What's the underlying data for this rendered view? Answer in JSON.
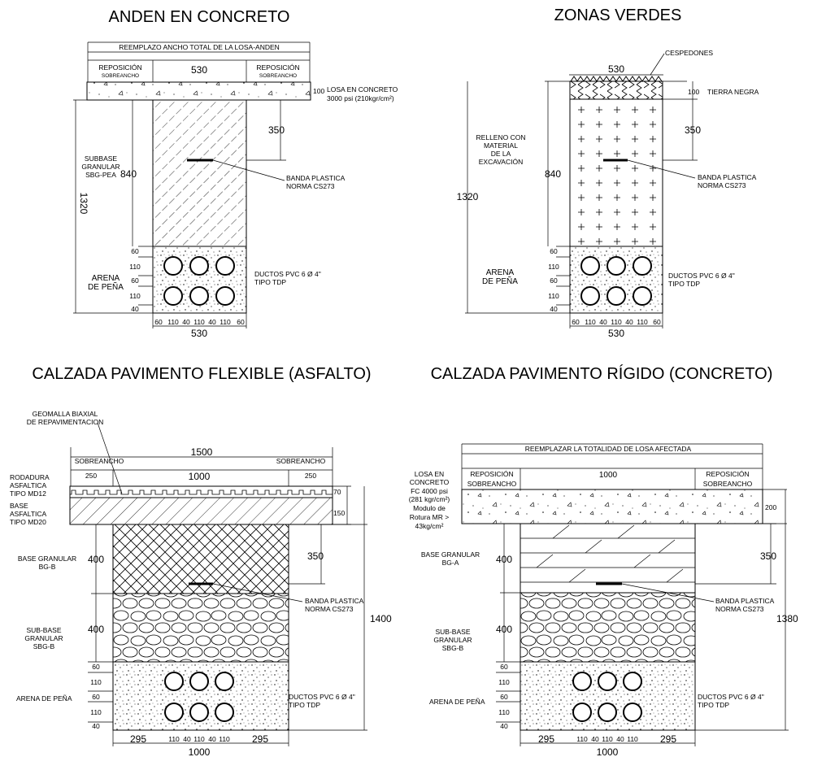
{
  "anden": {
    "title": "ANDEN EN CONCRETO",
    "top_note": "REEMPLAZO ANCHO TOTAL DE LA LOSA-ANDEN",
    "repos_l1": "REPOSICIÓN",
    "repos_l2": "SOBREANCHO",
    "repos_r1": "REPOSICIÓN",
    "repos_r2": "SOBREANCHO",
    "width_top": "530",
    "losa_dim": "100",
    "losa_1": "LOSA EN CONCRETO",
    "losa_2": "3000 psi (210kgr/cm²)",
    "d350": "350",
    "subbase_1": "SUBBASE",
    "subbase_2": "GRANULAR",
    "subbase_3": "SBG-PEA",
    "d840": "840",
    "d1320": "1320",
    "banda_1": "BANDA PLASTICA",
    "banda_2": "NORMA CS273",
    "arena_1": "ARENA",
    "arena_2": "DE PEÑA",
    "ductos_1": "DUCTOS PVC 6 Ø 4\"",
    "ductos_2": "TIPO TDP",
    "v60a": "60",
    "v110a": "110",
    "v60b": "60",
    "v110b": "110",
    "v40": "40",
    "h": [
      "60",
      "110",
      "40",
      "110",
      "40",
      "110",
      "60"
    ],
    "width_bottom": "530"
  },
  "zonas": {
    "title": "ZONAS VERDES",
    "cesped": "CESPEDONES",
    "width_top": "530",
    "tierra_dim": "100",
    "tierra": "TIERRA NEGRA",
    "relleno_1": "RELLENO CON",
    "relleno_2": "MATERIAL",
    "relleno_3": "DE LA",
    "relleno_4": "EXCAVACIÓN",
    "d350": "350",
    "d840": "840",
    "d1320": "1320",
    "banda_1": "BANDA PLASTICA",
    "banda_2": "NORMA CS273",
    "arena_1": "ARENA",
    "arena_2": "DE PEÑA",
    "ductos_1": "DUCTOS PVC 6 Ø 4\"",
    "ductos_2": "TIPO TDP",
    "v60a": "60",
    "v110a": "110",
    "v60b": "60",
    "v110b": "110",
    "v40": "40",
    "h": [
      "60",
      "110",
      "40",
      "110",
      "40",
      "110",
      "60"
    ],
    "width_bottom": "530"
  },
  "flexible": {
    "title": "CALZADA PAVIMENTO FLEXIBLE (ASFALTO)",
    "geomalla_1": "GEOMALLA BIAXIAL",
    "geomalla_2": "DE REPAVIMENTACION",
    "w1500": "1500",
    "sobre_l": "SOBREANCHO",
    "sobre_r": "SOBREANCHO",
    "w250l": "250",
    "w1000": "1000",
    "w250r": "250",
    "rod_1": "RODADURA",
    "rod_2": "ASFALTICA",
    "rod_3": "TIPO MD12",
    "base_1": "BASE",
    "base_2": "ASFALTICA",
    "base_3": "TIPO MD20",
    "d70": "70",
    "d150": "150",
    "bg_1": "BASE GRANULAR",
    "bg_2": "BG-B",
    "d400a": "400",
    "d350": "350",
    "banda_1": "BANDA PLASTICA",
    "banda_2": "NORMA CS273",
    "sbg_1": "SUB-BASE",
    "sbg_2": "GRANULAR",
    "sbg_3": "SBG-B",
    "d400b": "400",
    "d1400": "1400",
    "arena": "ARENA DE PEÑA",
    "ductos_1": "DUCTOS PVC 6 Ø 4\"",
    "ductos_2": "TIPO TDP",
    "v60a": "60",
    "v110a": "110",
    "v60b": "60",
    "v110b": "110",
    "v40": "40",
    "h295l": "295",
    "h": [
      "110",
      "40",
      "110",
      "40",
      "110"
    ],
    "h295r": "295",
    "width_bottom": "1000"
  },
  "rigido": {
    "title": "CALZADA PAVIMENTO RÍGIDO (CONCRETO)",
    "top_note": "REEMPLAZAR LA TOTALIDAD DE LOSA AFECTADA",
    "repos_l1": "REPOSICIÓN",
    "repos_l2": "SOBREANCHO",
    "repos_r1": "REPOSICIÓN",
    "repos_r2": "SOBREANCHO",
    "w1000": "1000",
    "losa_1": "LOSA EN",
    "losa_2": "CONCRETO",
    "losa_3": "FC 4000 psi",
    "losa_4": "(281 kgr/cm²)",
    "losa_5": "Modulo de",
    "losa_6": "Rotura MR >",
    "losa_7": "43kg/cm²",
    "d200": "200",
    "bg_1": "BASE GRANULAR",
    "bg_2": "BG-A",
    "d400a": "400",
    "d350": "350",
    "banda_1": "BANDA PLASTICA",
    "banda_2": "NORMA CS273",
    "sbg_1": "SUB-BASE",
    "sbg_2": "GRANULAR",
    "sbg_3": "SBG-B",
    "d400b": "400",
    "d1380": "1380",
    "arena": "ARENA DE PEÑA",
    "ductos_1": "DUCTOS PVC 6 Ø 4\"",
    "ductos_2": "TIPO TDP",
    "v60a": "60",
    "v110a": "110",
    "v60b": "60",
    "v110b": "110",
    "v40": "40",
    "h295l": "295",
    "h": [
      "110",
      "40",
      "110",
      "40",
      "110"
    ],
    "h295r": "295",
    "width_bottom": "1000"
  }
}
